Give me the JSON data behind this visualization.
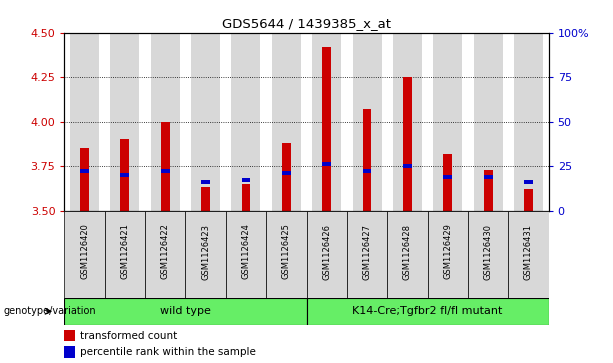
{
  "title": "GDS5644 / 1439385_x_at",
  "samples": [
    "GSM1126420",
    "GSM1126421",
    "GSM1126422",
    "GSM1126423",
    "GSM1126424",
    "GSM1126425",
    "GSM1126426",
    "GSM1126427",
    "GSM1126428",
    "GSM1126429",
    "GSM1126430",
    "GSM1126431"
  ],
  "red_values": [
    3.85,
    3.9,
    4.0,
    3.63,
    3.65,
    3.88,
    4.42,
    4.07,
    4.25,
    3.82,
    3.73,
    3.62
  ],
  "blue_values": [
    3.72,
    3.7,
    3.72,
    3.66,
    3.67,
    3.71,
    3.76,
    3.72,
    3.75,
    3.69,
    3.69,
    3.66
  ],
  "ymin": 3.5,
  "ymax": 4.5,
  "yticks": [
    3.5,
    3.75,
    4.0,
    4.25,
    4.5
  ],
  "right_yticks": [
    0,
    25,
    50,
    75,
    100
  ],
  "right_yticklabels": [
    "0",
    "25",
    "50",
    "75",
    "100%"
  ],
  "grid_values": [
    3.75,
    4.0,
    4.25
  ],
  "red_color": "#cc0000",
  "blue_color": "#0000cc",
  "wild_type_label": "wild type",
  "mutant_label": "K14-Cre;Tgfbr2 fl/fl mutant",
  "group_color": "#66ee66",
  "genotype_label": "genotype/variation",
  "legend_red": "transformed count",
  "legend_blue": "percentile rank within the sample",
  "bg_color": "#d8d8d8",
  "plot_bg": "#ffffff"
}
